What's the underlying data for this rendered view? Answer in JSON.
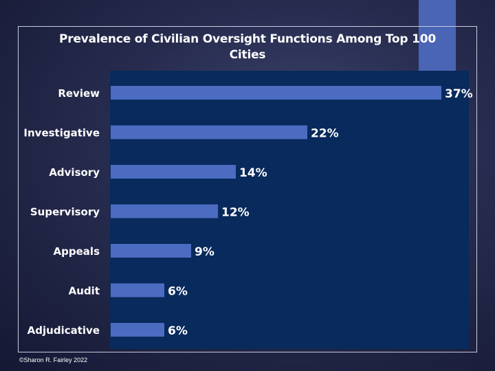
{
  "chart_data": {
    "type": "bar",
    "orientation": "horizontal",
    "title": "Prevalence of Civilian Oversight Functions Among Top 100 Cities",
    "categories": [
      "Review",
      "Investigative",
      "Advisory",
      "Supervisory",
      "Appeals",
      "Audit",
      "Adjudicative"
    ],
    "values": [
      37,
      22,
      14,
      12,
      9,
      6,
      6
    ],
    "value_labels": [
      "37%",
      "22%",
      "14%",
      "12%",
      "9%",
      "6%",
      "6%"
    ],
    "xlabel": "",
    "ylabel": "",
    "grid": false,
    "legend": "none"
  },
  "colors": {
    "bar": "#4b6cc1",
    "plot_background": "#082a5c",
    "text": "#ffffff"
  },
  "footer": {
    "copyright": "©Sharon R. Fairley 2022"
  }
}
